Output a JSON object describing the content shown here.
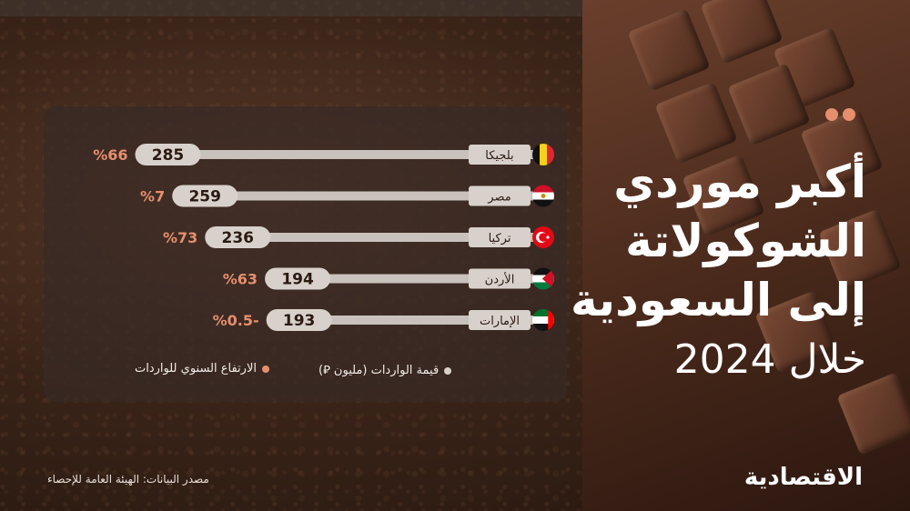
{
  "title": {
    "line1": "أكبر موردي",
    "line2": "الشوكولاتة",
    "line3": "إلى السعودية",
    "line4": "خلال 2024"
  },
  "legend": {
    "value_label": "قيمة الواردات (مليون ⃁)",
    "growth_label": "الارتفاع السنوي للواردات"
  },
  "source": "مصدر البيانات: الهيئة العامة للإحصاء",
  "logo": "الاقتصادية",
  "colors": {
    "accent": "#e58f6e",
    "bar": "#c9c2bc",
    "value_pill": "#d8d1cb",
    "label_box": "#d8d1cb",
    "text_light": "#f2ece8"
  },
  "chart_data": {
    "type": "bar",
    "orientation": "horizontal",
    "title": "أكبر موردي الشوكولاتة إلى السعودية خلال 2024",
    "categories": [
      "بلجيكا",
      "مصر",
      "تركيا",
      "الأردن",
      "الإمارات"
    ],
    "series": [
      {
        "name": "قيمة الواردات (مليون ⃁)",
        "values": [
          285,
          259,
          236,
          194,
          193
        ]
      },
      {
        "name": "الارتفاع السنوي للواردات",
        "values": [
          66,
          7,
          73,
          63,
          -0.5
        ],
        "labels": [
          "%66",
          "%7",
          "%73",
          "%63",
          "%0.5-"
        ]
      }
    ],
    "flags": [
      "belgium-flag-icon",
      "egypt-flag-icon",
      "turkey-flag-icon",
      "jordan-flag-icon",
      "uae-flag-icon"
    ],
    "xlim": [
      0,
      300
    ],
    "grid": false,
    "legend_position": "bottom"
  }
}
